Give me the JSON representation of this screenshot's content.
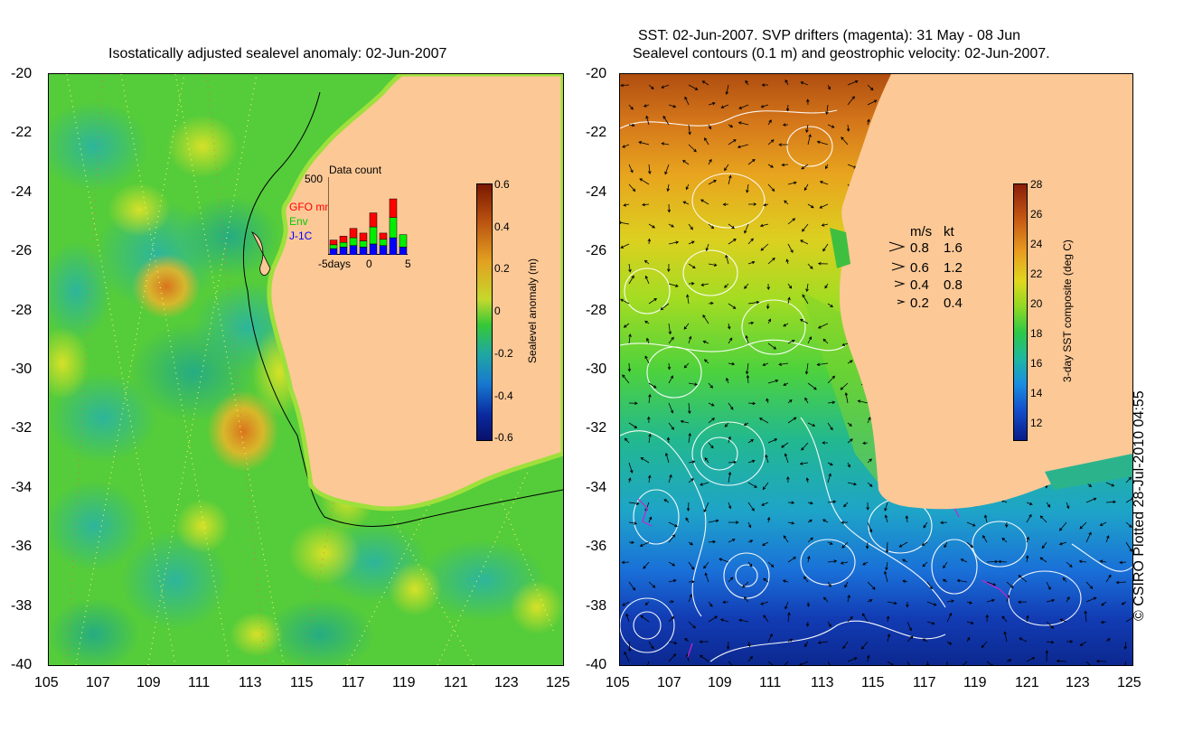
{
  "left_panel": {
    "title": "Isostatically adjusted sealevel anomaly: 02-Jun-2007",
    "lat_ticks": [
      "-20",
      "-22",
      "-24",
      "-26",
      "-28",
      "-30",
      "-32",
      "-34",
      "-36",
      "-38",
      "-40"
    ],
    "lon_ticks": [
      "105",
      "107",
      "109",
      "111",
      "113",
      "115",
      "117",
      "119",
      "121",
      "123",
      "125"
    ],
    "colorbar": {
      "label": "Sealevel anomaly (m)",
      "ticks": [
        "0.6",
        "0.4",
        "0.2",
        "0",
        "-0.2",
        "-0.4",
        "-0.6"
      ]
    },
    "inset": {
      "title": "Data count",
      "ymax_label": "500",
      "legend": [
        {
          "label": "GFO mm",
          "color": "#ff0000"
        },
        {
          "label": "Env",
          "color": "#00ee00"
        },
        {
          "label": "J-1C",
          "color": "#0000ff"
        }
      ],
      "x_ticks": [
        "-5days",
        "0",
        "5"
      ],
      "bars": [
        {
          "blue": 0.08,
          "green": 0.05,
          "red": 0.06
        },
        {
          "blue": 0.1,
          "green": 0.06,
          "red": 0.08
        },
        {
          "blue": 0.12,
          "green": 0.1,
          "red": 0.12
        },
        {
          "blue": 0.1,
          "green": 0.08,
          "red": 0.1
        },
        {
          "blue": 0.14,
          "green": 0.22,
          "red": 0.18
        },
        {
          "blue": 0.12,
          "green": 0.08,
          "red": 0.08
        },
        {
          "blue": 0.22,
          "green": 0.26,
          "red": 0.24
        },
        {
          "blue": 0.1,
          "green": 0.16,
          "red": 0
        }
      ]
    }
  },
  "right_panel": {
    "title_line1": "SST: 02-Jun-2007. SVP drifters (magenta): 31 May - 08 Jun",
    "title_line2": "Sealevel contours (0.1 m) and geostrophic velocity: 02-Jun-2007.",
    "lat_ticks": [
      "-20",
      "-22",
      "-24",
      "-26",
      "-28",
      "-30",
      "-32",
      "-34",
      "-36",
      "-38",
      "-40"
    ],
    "lon_ticks": [
      "105",
      "107",
      "109",
      "111",
      "113",
      "115",
      "117",
      "119",
      "121",
      "123",
      "125"
    ],
    "colorbar": {
      "label": "3-day SST composite (deg C)",
      "ticks": [
        "28",
        "26",
        "24",
        "22",
        "20",
        "18",
        "16",
        "14",
        "12"
      ]
    },
    "velocity_legend": {
      "header_ms": "m/s",
      "header_kt": "kt",
      "rows": [
        {
          "ms": "0.8",
          "kt": "1.6"
        },
        {
          "ms": "0.6",
          "kt": "1.2"
        },
        {
          "ms": "0.4",
          "kt": "0.8"
        },
        {
          "ms": "0.2",
          "kt": "0.4"
        }
      ]
    }
  },
  "credit": "© CSIRO Plotted 28-Jul-2010 04:55",
  "colors": {
    "land": "#fcc896",
    "ocean_green": "#6fdc2c",
    "contour": "#ffffff",
    "drifter": "#cc22cc"
  }
}
